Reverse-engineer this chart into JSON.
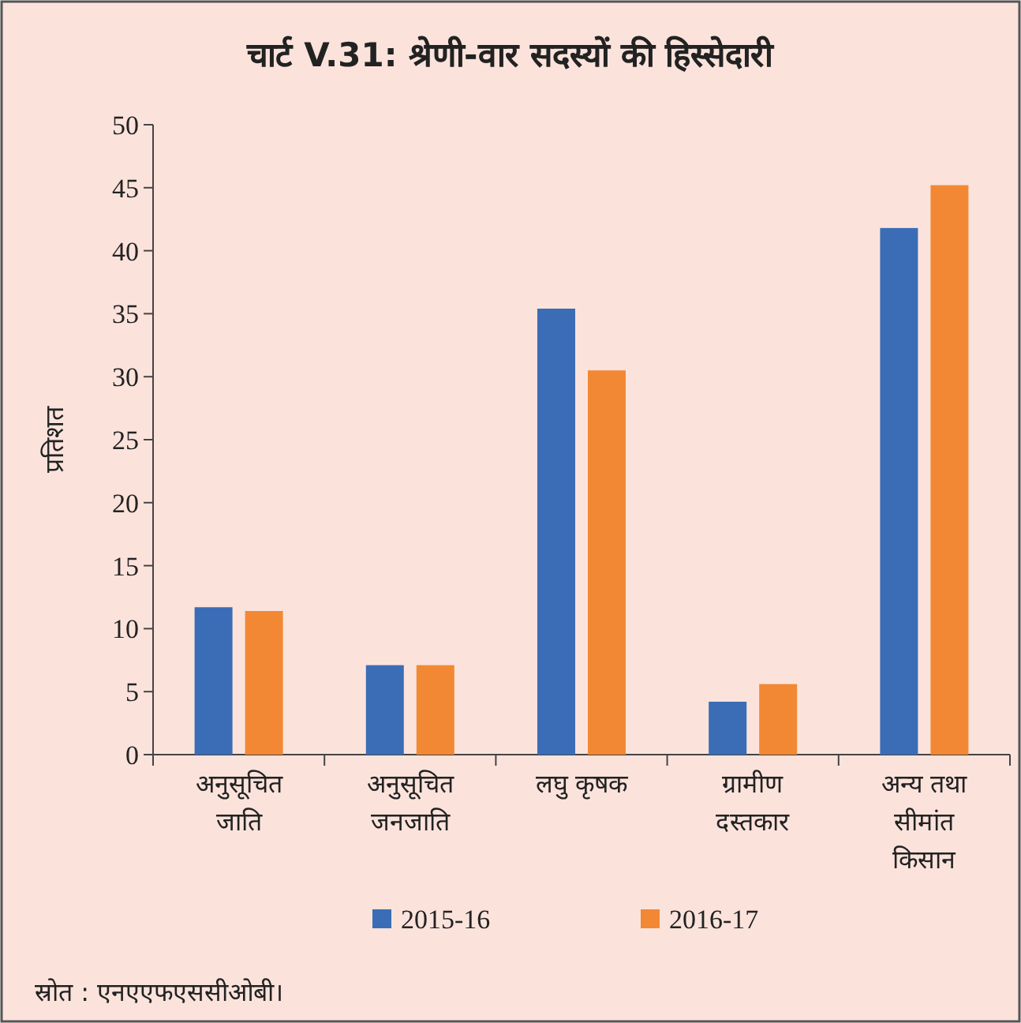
{
  "chart_data": {
    "type": "bar",
    "title": "चार्ट V.31: श्रेणी-वार सदस्यों की हिस्सेदारी",
    "ylabel": "प्रतिशत",
    "categories": [
      "अनुसूचित जाति",
      "अनुसूचित जनजाति",
      "लघु कृषक",
      "ग्रामीण दस्तकार",
      "अन्य तथा सीमांत किसान"
    ],
    "series": [
      {
        "name": "2015-16",
        "color": "#3a6db5",
        "values": [
          11.7,
          7.1,
          35.4,
          4.2,
          41.8
        ]
      },
      {
        "name": "2016-17",
        "color": "#f28834",
        "values": [
          11.4,
          7.1,
          30.5,
          5.6,
          45.2
        ]
      }
    ],
    "ylim": [
      0,
      50
    ],
    "yticks": [
      0,
      5,
      10,
      15,
      20,
      25,
      30,
      35,
      40,
      45,
      50
    ],
    "grid": false,
    "legend": "bottom",
    "annotations": [
      "स्रोत : एनएएफएससीओबी।"
    ]
  }
}
